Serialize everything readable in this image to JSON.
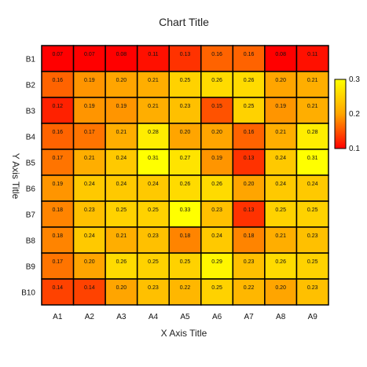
{
  "chart_data": {
    "type": "heatmap",
    "title": "Chart Title",
    "xlabel": "X Axis Title",
    "ylabel": "Y Axis Title",
    "x_categories": [
      "A1",
      "A2",
      "A3",
      "A4",
      "A5",
      "A6",
      "A7",
      "A8",
      "A9"
    ],
    "y_categories": [
      "B1",
      "B2",
      "B3",
      "B4",
      "B5",
      "B6",
      "B7",
      "B8",
      "B9",
      "B10"
    ],
    "values": [
      [
        0.07,
        0.07,
        0.08,
        0.11,
        0.13,
        0.16,
        0.16,
        0.08,
        0.11
      ],
      [
        0.16,
        0.19,
        0.2,
        0.21,
        0.25,
        0.26,
        0.26,
        0.2,
        0.21
      ],
      [
        0.12,
        0.19,
        0.19,
        0.21,
        0.23,
        0.15,
        0.25,
        0.19,
        0.21
      ],
      [
        0.16,
        0.17,
        0.21,
        0.28,
        0.2,
        0.2,
        0.16,
        0.21,
        0.28
      ],
      [
        0.17,
        0.21,
        0.24,
        0.31,
        0.27,
        0.19,
        0.13,
        0.24,
        0.31
      ],
      [
        0.19,
        0.24,
        0.24,
        0.24,
        0.26,
        0.26,
        0.2,
        0.24,
        0.24
      ],
      [
        0.18,
        0.23,
        0.25,
        0.25,
        0.33,
        0.23,
        0.13,
        0.25,
        0.25
      ],
      [
        0.18,
        0.24,
        0.21,
        0.23,
        0.18,
        0.24,
        0.18,
        0.21,
        0.23
      ],
      [
        0.17,
        0.2,
        0.26,
        0.25,
        0.25,
        0.29,
        0.23,
        0.26,
        0.25
      ],
      [
        0.14,
        0.14,
        0.2,
        0.23,
        0.22,
        0.25,
        0.22,
        0.2,
        0.23
      ]
    ],
    "colorbar": {
      "min": 0.1,
      "max": 0.3,
      "ticks": [
        "0.1",
        "0.2",
        "0.3"
      ],
      "colors": [
        "#ff0000",
        "#ffa500",
        "#ffff00"
      ]
    },
    "cell_border_color": "#000000",
    "grid": false,
    "legend": "right"
  }
}
